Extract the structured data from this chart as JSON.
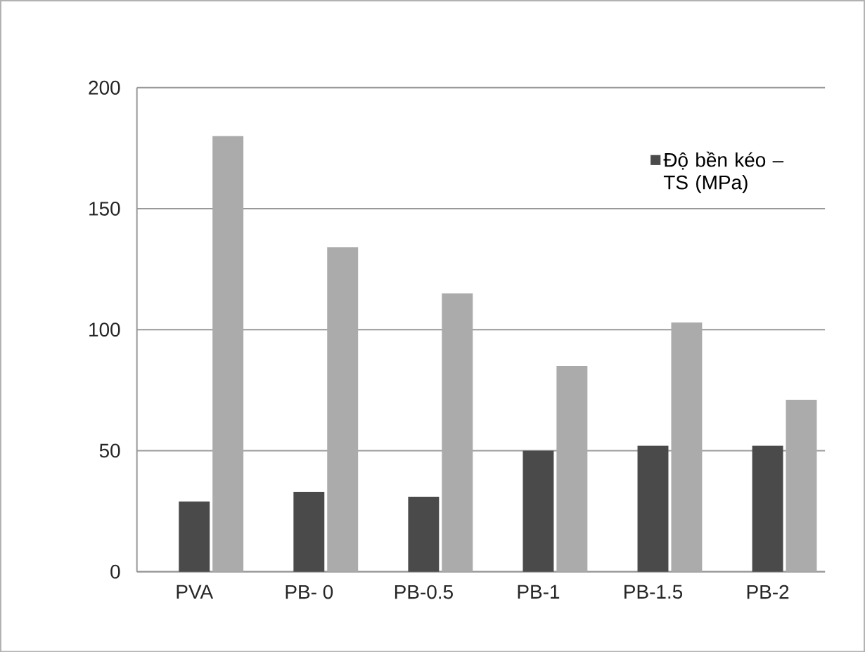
{
  "chart_data": {
    "type": "bar",
    "categories": [
      "PVA",
      "PB- 0",
      "PB-0.5",
      "PB-1",
      "PB-1.5",
      "PB-2"
    ],
    "series": [
      {
        "name": "Độ bền kéo – TS (MPa)",
        "color": "#4a4a4a",
        "values": [
          29,
          33,
          31,
          50,
          52,
          52
        ]
      },
      {
        "color": "#ababab",
        "values": [
          180,
          134,
          115,
          85,
          103,
          71
        ]
      }
    ],
    "ylim": [
      0,
      200
    ],
    "yticks": [
      0,
      50,
      100,
      150,
      200
    ],
    "grid": "y",
    "legend": "top right"
  }
}
